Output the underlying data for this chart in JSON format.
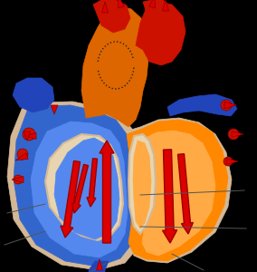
{
  "bg_color": "#000000",
  "blue_heart": "#3366cc",
  "blue_light": "#5588ee",
  "orange_heart": "#ff8800",
  "orange_light": "#ffaa44",
  "beige_wall": "#d4b896",
  "beige_inner": "#e8d5b0",
  "red_vessel": "#cc1100",
  "red_dark": "#aa0000",
  "blue_vessel": "#2244bb",
  "blue_dark": "#1133aa",
  "arrow_red": "#dd0000",
  "arrow_outline": "#990000",
  "figsize": [
    2.84,
    3.0
  ],
  "dpi": 100
}
